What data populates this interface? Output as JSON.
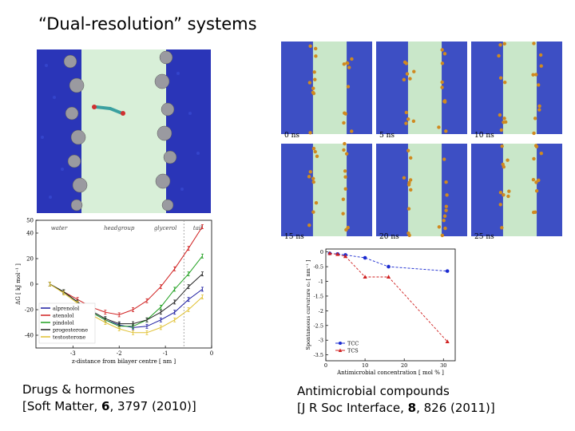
{
  "slide": {
    "title": "“Dual-resolution” systems",
    "left_caption": {
      "line1": "Drugs & hormones",
      "line2_prefix": "[Soft Matter, ",
      "line2_volume": "6",
      "line2_suffix": ", 3797 (2010)]"
    },
    "right_caption": {
      "line1": "Antimicrobial compounds",
      "line2_prefix": "[J R Soc Interface, ",
      "line2_volume": "8",
      "line2_suffix": ", 826 (2011)]"
    },
    "snapshots": [
      {
        "label": "0 ns"
      },
      {
        "label": "5 ns"
      },
      {
        "label": "10 ns"
      },
      {
        "label": "15 ns"
      },
      {
        "label": "20 ns"
      },
      {
        "label": "25 ns"
      }
    ]
  },
  "chart_data": [
    {
      "type": "line",
      "region_labels": [
        "water",
        "headgroup",
        "glycerol",
        "tail"
      ],
      "xlabel": "z-distance from bilayer centre [ nm ]",
      "ylabel": "ΔG [ kJ mol⁻¹ ]",
      "x_ticks": [
        "-3",
        "-2",
        "-1",
        "0"
      ],
      "y_ticks": [
        "50",
        "40",
        "20",
        "0",
        "-20",
        "-40"
      ],
      "xlim": [
        -3.8,
        0
      ],
      "ylim": [
        -50,
        50
      ],
      "x": [
        -3.5,
        -3.2,
        -2.9,
        -2.6,
        -2.3,
        -2.0,
        -1.7,
        -1.4,
        -1.1,
        -0.8,
        -0.5,
        -0.2
      ],
      "series": [
        {
          "name": "alprenolol",
          "color": "#1a1aa0",
          "values": [
            0,
            -6,
            -14,
            -22,
            -28,
            -32,
            -34,
            -33,
            -28,
            -22,
            -12,
            -4
          ]
        },
        {
          "name": "atenolol",
          "color": "#d02020",
          "values": [
            0,
            -6,
            -12,
            -18,
            -22,
            -24,
            -20,
            -13,
            -2,
            12,
            28,
            45
          ]
        },
        {
          "name": "pindolol",
          "color": "#20a020",
          "values": [
            0,
            -6,
            -14,
            -22,
            -28,
            -33,
            -33,
            -28,
            -18,
            -4,
            8,
            22
          ]
        },
        {
          "name": "progesterone",
          "color": "#222222",
          "values": [
            0,
            -6,
            -14,
            -21,
            -27,
            -31,
            -31,
            -28,
            -22,
            -14,
            -2,
            8
          ]
        },
        {
          "name": "testosterone",
          "color": "#e0c030",
          "values": [
            0,
            -7,
            -15,
            -24,
            -30,
            -35,
            -38,
            -38,
            -34,
            -28,
            -20,
            -10
          ]
        }
      ]
    },
    {
      "type": "line",
      "xlabel": "Antimicrobial concentration [ mol % ]",
      "ylabel": "Spontaneous curvature c₀ [ nm⁻¹ ]",
      "x_ticks": [
        "0",
        "10",
        "20",
        "30"
      ],
      "y_ticks": [
        "0",
        "-0.5",
        "-1",
        "-1.5",
        "-2",
        "-2.5",
        "-3",
        "-3.5"
      ],
      "xlim": [
        0,
        33
      ],
      "ylim": [
        -3.7,
        0.1
      ],
      "series": [
        {
          "name": "TCC",
          "color": "#1a2ad0",
          "marker": "circle",
          "x": [
            1,
            3,
            5,
            10,
            16,
            31
          ],
          "values": [
            -0.05,
            -0.07,
            -0.1,
            -0.2,
            -0.5,
            -0.65
          ]
        },
        {
          "name": "TCS",
          "color": "#d02020",
          "marker": "triangle",
          "x": [
            1,
            3,
            5,
            10,
            16,
            31
          ],
          "values": [
            -0.05,
            -0.08,
            -0.15,
            -0.85,
            -0.85,
            -3.05
          ]
        }
      ]
    }
  ]
}
